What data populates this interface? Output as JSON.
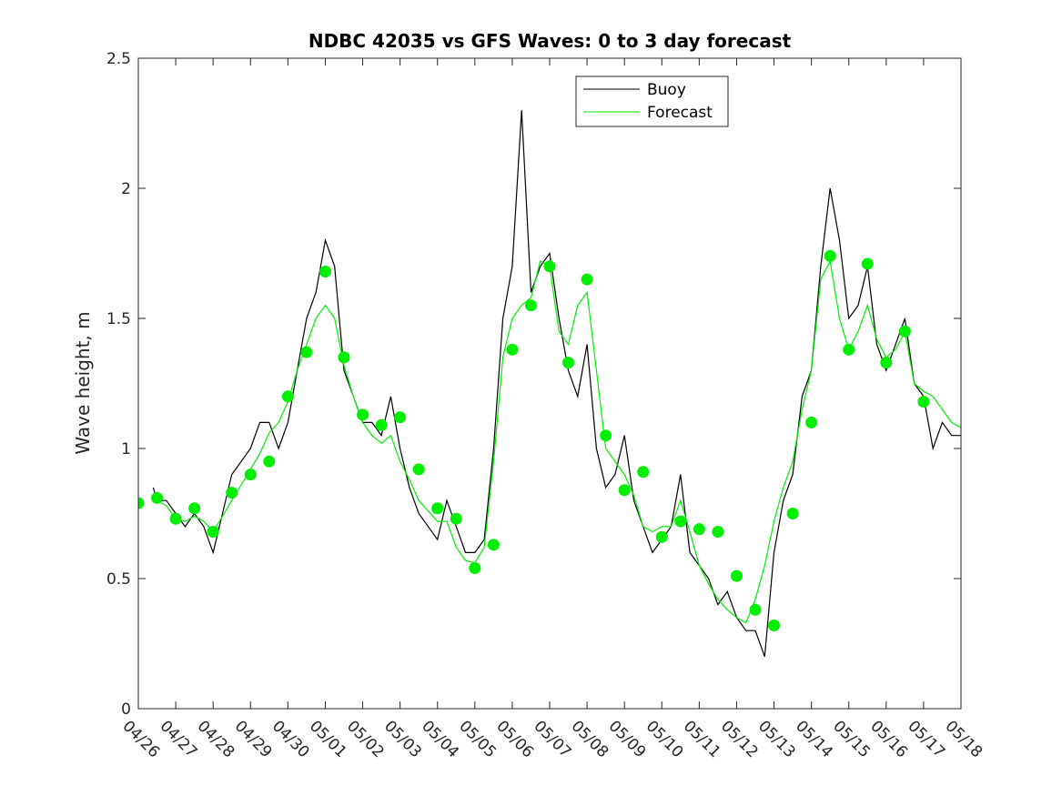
{
  "chart_data": {
    "type": "line",
    "title": "NDBC 42035 vs GFS Waves: 0 to 3 day forecast",
    "xlabel": "",
    "ylabel": "Wave height, m",
    "ylim": [
      0,
      2.5
    ],
    "yticks": [
      "0",
      "0.5",
      "1",
      "1.5",
      "2",
      "2.5"
    ],
    "xlim_days": [
      0,
      22
    ],
    "xticks": [
      "04/26",
      "04/27",
      "04/28",
      "04/29",
      "04/30",
      "05/01",
      "05/02",
      "05/03",
      "05/04",
      "05/05",
      "05/06",
      "05/07",
      "05/08",
      "05/09",
      "05/10",
      "05/11",
      "05/12",
      "05/13",
      "05/14",
      "05/15",
      "05/16",
      "05/17",
      "05/18"
    ],
    "legend_position": "top-center",
    "grid": false,
    "colors": {
      "buoy": "#000000",
      "forecast": "#00ee00",
      "analysis_points": "#00ee00"
    },
    "series": [
      {
        "name": "Buoy",
        "x": [
          0.4,
          0.5,
          0.75,
          1.0,
          1.25,
          1.5,
          1.75,
          2.0,
          2.25,
          2.5,
          2.75,
          3.0,
          3.25,
          3.5,
          3.75,
          4.0,
          4.25,
          4.5,
          4.75,
          5.0,
          5.25,
          5.5,
          5.75,
          6.0,
          6.25,
          6.5,
          6.75,
          7.0,
          7.25,
          7.5,
          7.75,
          8.0,
          8.25,
          8.5,
          8.75,
          9.0,
          9.25,
          9.5,
          9.75,
          10.0,
          10.25,
          10.5,
          10.75,
          11.0,
          11.25,
          11.5,
          11.75,
          12.0,
          12.25,
          12.5,
          12.75,
          13.0,
          13.25,
          13.5,
          13.75,
          14.0,
          14.25,
          14.5,
          14.75,
          15.0,
          15.25,
          15.5,
          15.75,
          16.0,
          16.25,
          16.5,
          16.75,
          17.0,
          17.25,
          17.5,
          17.75,
          18.0,
          18.25,
          18.5,
          18.75,
          19.0,
          19.25,
          19.5,
          19.75,
          20.0,
          20.25,
          20.5,
          20.75,
          21.0,
          21.25,
          21.5,
          21.75,
          22.0
        ],
        "values": [
          0.85,
          0.8,
          0.8,
          0.75,
          0.7,
          0.75,
          0.7,
          0.6,
          0.75,
          0.9,
          0.95,
          1.0,
          1.1,
          1.1,
          1.0,
          1.1,
          1.3,
          1.5,
          1.6,
          1.8,
          1.7,
          1.3,
          1.2,
          1.1,
          1.1,
          1.05,
          1.2,
          1.0,
          0.85,
          0.75,
          0.7,
          0.65,
          0.8,
          0.7,
          0.6,
          0.6,
          0.65,
          1.0,
          1.5,
          1.7,
          2.3,
          1.6,
          1.7,
          1.75,
          1.5,
          1.3,
          1.2,
          1.4,
          1.0,
          0.85,
          0.9,
          1.05,
          0.8,
          0.7,
          0.6,
          0.65,
          0.7,
          0.9,
          0.6,
          0.55,
          0.5,
          0.4,
          0.45,
          0.35,
          0.3,
          0.3,
          0.2,
          0.6,
          0.8,
          0.9,
          1.2,
          1.3,
          1.7,
          2.0,
          1.8,
          1.5,
          1.55,
          1.7,
          1.4,
          1.3,
          1.4,
          1.5,
          1.25,
          1.2,
          1.0,
          1.1,
          1.05,
          1.05
        ]
      },
      {
        "name": "Forecast",
        "x": [
          0.4,
          0.5,
          0.75,
          1.0,
          1.25,
          1.5,
          1.75,
          2.0,
          2.25,
          2.5,
          2.75,
          3.0,
          3.25,
          3.5,
          3.75,
          4.0,
          4.25,
          4.5,
          4.75,
          5.0,
          5.25,
          5.5,
          5.75,
          6.0,
          6.25,
          6.5,
          6.75,
          7.0,
          7.25,
          7.5,
          7.75,
          8.0,
          8.25,
          8.5,
          8.75,
          9.0,
          9.25,
          9.5,
          9.75,
          10.0,
          10.25,
          10.5,
          10.75,
          11.0,
          11.25,
          11.5,
          11.75,
          12.0,
          12.25,
          12.5,
          12.75,
          13.0,
          13.25,
          13.5,
          13.75,
          14.0,
          14.25,
          14.5,
          14.75,
          15.0,
          15.25,
          15.5,
          15.75,
          16.0,
          16.25,
          16.5,
          16.75,
          17.0,
          17.25,
          17.5,
          17.75,
          18.0,
          18.25,
          18.5,
          18.75,
          19.0,
          19.25,
          19.5,
          19.75,
          20.0,
          20.25,
          20.5,
          20.75,
          21.0,
          21.25,
          21.5,
          21.75,
          22.0
        ],
        "values": [
          0.8,
          0.8,
          0.78,
          0.73,
          0.72,
          0.74,
          0.72,
          0.68,
          0.74,
          0.8,
          0.86,
          0.92,
          0.98,
          1.06,
          1.1,
          1.18,
          1.3,
          1.4,
          1.5,
          1.55,
          1.5,
          1.32,
          1.2,
          1.1,
          1.05,
          1.02,
          1.05,
          0.95,
          0.88,
          0.8,
          0.76,
          0.72,
          0.72,
          0.62,
          0.57,
          0.56,
          0.62,
          0.95,
          1.35,
          1.5,
          1.55,
          1.58,
          1.72,
          1.7,
          1.45,
          1.4,
          1.55,
          1.6,
          1.3,
          1.0,
          0.95,
          0.9,
          0.82,
          0.7,
          0.68,
          0.7,
          0.7,
          0.8,
          0.68,
          0.55,
          0.48,
          0.42,
          0.38,
          0.35,
          0.33,
          0.42,
          0.55,
          0.72,
          0.85,
          0.95,
          1.15,
          1.3,
          1.65,
          1.72,
          1.5,
          1.38,
          1.45,
          1.55,
          1.42,
          1.35,
          1.38,
          1.45,
          1.25,
          1.22,
          1.2,
          1.15,
          1.1,
          1.08
        ]
      }
    ],
    "analysis_points": {
      "x": [
        0.0,
        0.5,
        1.0,
        1.5,
        2.0,
        2.5,
        3.0,
        3.5,
        4.0,
        4.5,
        5.0,
        5.5,
        6.0,
        6.5,
        7.0,
        7.5,
        8.0,
        8.5,
        9.0,
        9.5,
        10.0,
        10.5,
        11.0,
        11.5,
        12.0,
        12.5,
        13.0,
        13.5,
        14.0,
        14.5,
        15.0,
        15.5,
        16.0,
        16.5,
        17.0,
        17.5,
        18.0,
        18.5,
        19.0,
        19.5,
        20.0,
        20.5,
        21.0
      ],
      "values": [
        0.79,
        0.81,
        0.73,
        0.77,
        0.68,
        0.83,
        0.9,
        0.95,
        1.2,
        1.37,
        1.68,
        1.35,
        1.13,
        1.09,
        1.12,
        0.92,
        0.77,
        0.73,
        0.54,
        0.63,
        1.38,
        1.55,
        1.7,
        1.33,
        1.65,
        1.05,
        0.84,
        0.91,
        0.66,
        0.72,
        0.69,
        0.68,
        0.51,
        0.38,
        0.32,
        0.75,
        1.1,
        1.74,
        1.38,
        1.71,
        1.33,
        1.45,
        1.18
      ]
    }
  }
}
